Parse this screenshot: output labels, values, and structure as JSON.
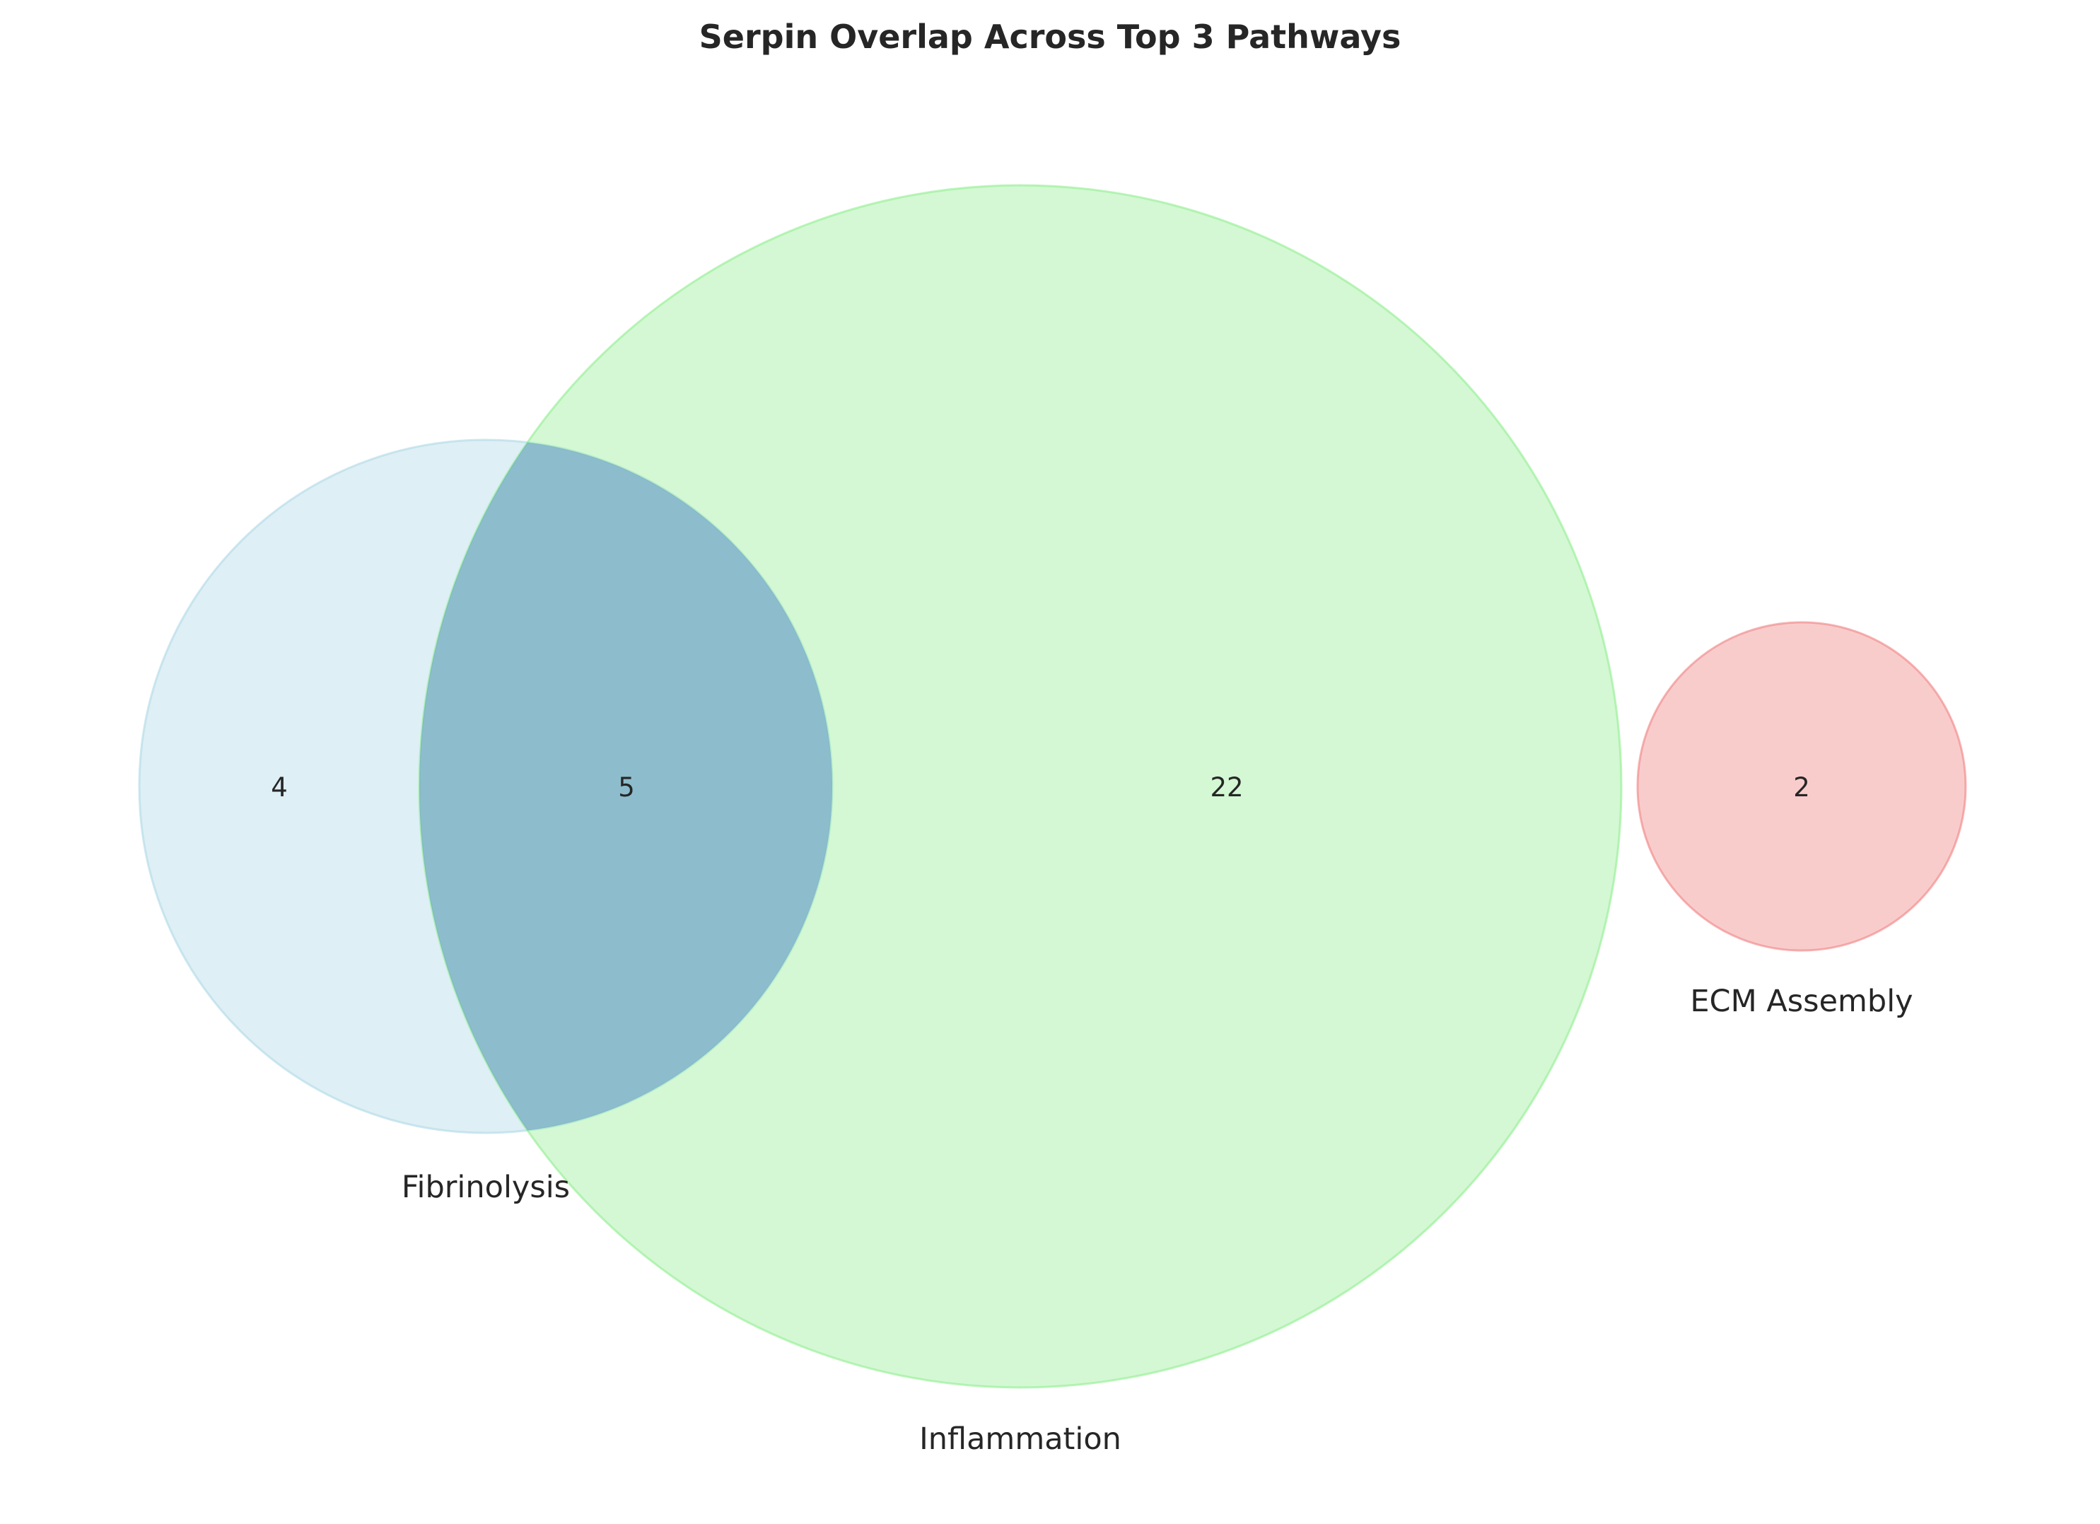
{
  "title": "Serpin Overlap Across Top 3 Pathways",
  "sets": [
    {
      "id": "fibrinolysis",
      "label": "Fibrinolysis",
      "color": "#add8e6"
    },
    {
      "id": "inflammation",
      "label": "Inflammation",
      "color": "#90ee90"
    },
    {
      "id": "ecm",
      "label": "ECM Assembly",
      "color": "#f08080"
    }
  ],
  "regions": {
    "fibrinolysis_only": "4",
    "fibrinolysis_inflammation": "5",
    "inflammation_only": "22",
    "ecm_only": "2"
  },
  "overlap_color": "#6495cd"
}
